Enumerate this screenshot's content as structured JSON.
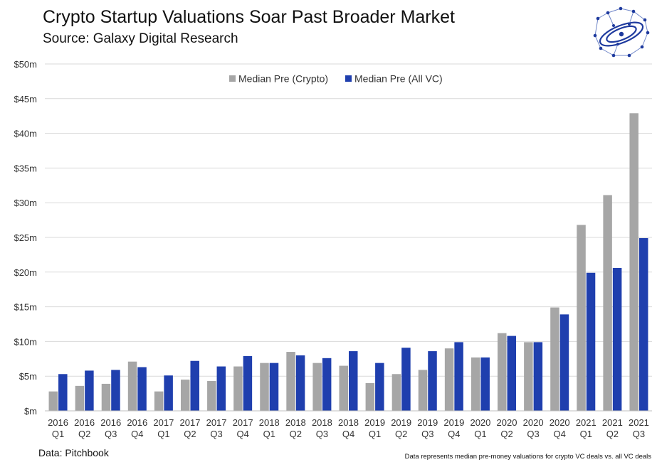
{
  "header": {
    "title": "Crypto Startup Valuations Soar Past Broader Market",
    "subtitle": "Source: Galaxy Digital Research"
  },
  "logo": {
    "icon": "galaxy-logo-icon",
    "color": "#1e3a9e"
  },
  "footer": {
    "data_source": "Data: Pitchbook",
    "note": "Data represents median pre-money valuations for crypto VC deals vs. all VC deals"
  },
  "chart_data": {
    "type": "bar",
    "categories": [
      [
        "2016",
        "Q1"
      ],
      [
        "2016",
        "Q2"
      ],
      [
        "2016",
        "Q3"
      ],
      [
        "2016",
        "Q4"
      ],
      [
        "2017",
        "Q1"
      ],
      [
        "2017",
        "Q2"
      ],
      [
        "2017",
        "Q3"
      ],
      [
        "2017",
        "Q4"
      ],
      [
        "2018",
        "Q1"
      ],
      [
        "2018",
        "Q2"
      ],
      [
        "2018",
        "Q3"
      ],
      [
        "2018",
        "Q4"
      ],
      [
        "2019",
        "Q1"
      ],
      [
        "2019",
        "Q2"
      ],
      [
        "2019",
        "Q3"
      ],
      [
        "2019",
        "Q4"
      ],
      [
        "2020",
        "Q1"
      ],
      [
        "2020",
        "Q2"
      ],
      [
        "2020",
        "Q3"
      ],
      [
        "2020",
        "Q4"
      ],
      [
        "2021",
        "Q1"
      ],
      [
        "2021",
        "Q2"
      ],
      [
        "2021",
        "Q3"
      ]
    ],
    "series": [
      {
        "name": "Median Pre (Crypto)",
        "color": "#a6a6a6",
        "values": [
          2.8,
          3.6,
          3.9,
          7.1,
          2.8,
          4.5,
          4.3,
          6.4,
          6.9,
          8.5,
          6.9,
          6.5,
          4.0,
          5.3,
          5.9,
          9.0,
          7.7,
          11.2,
          9.9,
          14.9,
          26.8,
          31.1,
          42.9
        ]
      },
      {
        "name": "Median Pre (All VC)",
        "color": "#1f3fae",
        "values": [
          5.3,
          5.8,
          5.9,
          6.3,
          5.1,
          7.2,
          6.4,
          7.9,
          6.9,
          8.0,
          7.6,
          8.6,
          6.9,
          9.1,
          8.6,
          9.9,
          7.7,
          10.8,
          9.9,
          13.9,
          19.9,
          20.6,
          24.9
        ]
      }
    ],
    "title": "Crypto Startup Valuations Soar Past Broader Market",
    "subtitle": "Source: Galaxy Digital Research",
    "xlabel": "",
    "ylabel": "",
    "ylim": [
      0,
      50
    ],
    "yticks": [
      0,
      5,
      10,
      15,
      20,
      25,
      30,
      35,
      40,
      45,
      50
    ],
    "ytick_labels": [
      "$m",
      "$5m",
      "$10m",
      "$15m",
      "$20m",
      "$25m",
      "$30m",
      "$35m",
      "$40m",
      "$45m",
      "$50m"
    ],
    "grid": true,
    "legend": "top-center"
  }
}
